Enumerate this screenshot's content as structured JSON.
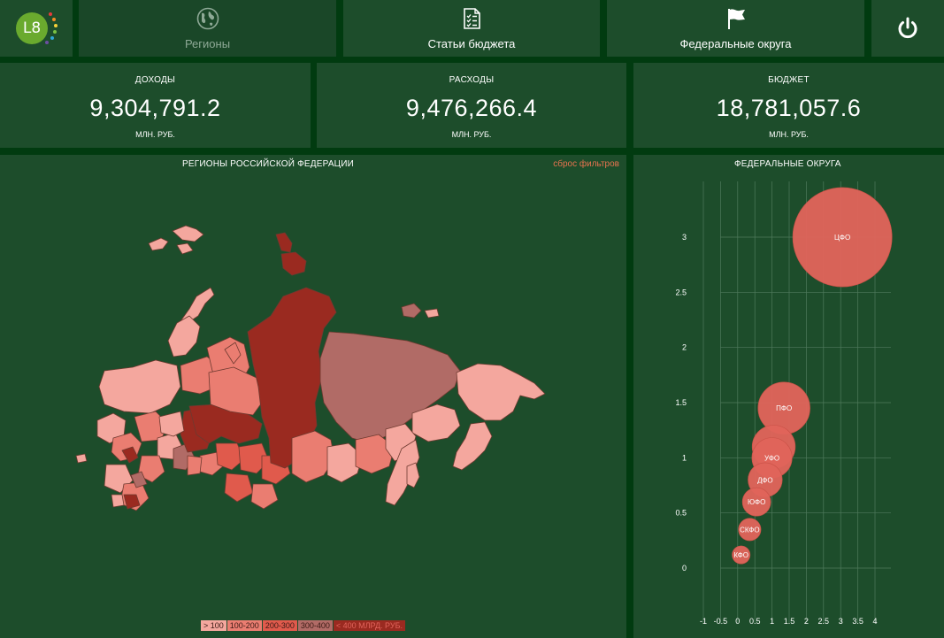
{
  "nav": {
    "logo_text": "L8",
    "tabs": [
      {
        "label": "Регионы",
        "icon": "globe-icon",
        "active": true
      },
      {
        "label": "Статьи бюджета",
        "icon": "checklist-icon",
        "active": false
      },
      {
        "label": "Федеральные округа",
        "icon": "flag-icon",
        "active": false
      }
    ],
    "power_icon": "power-icon"
  },
  "kpis": [
    {
      "title": "ДОХОДЫ",
      "value": "9,304,791.2",
      "unit": "МЛН. РУБ."
    },
    {
      "title": "РАСХОДЫ",
      "value": "9,476,266.4",
      "unit": "МЛН. РУБ."
    },
    {
      "title": "БЮДЖЕТ",
      "value": "18,781,057.6",
      "unit": "МЛН. РУБ."
    }
  ],
  "map": {
    "title": "РЕГИОНЫ РОССИЙСКОЙ ФЕДЕРАЦИИ",
    "reset_label": "сброс фильтров",
    "legend": [
      {
        "label": "> 100",
        "color": "#f4a79e"
      },
      {
        "label": "100-200",
        "color": "#ea7d71"
      },
      {
        "label": "200-300",
        "color": "#e05a4c"
      },
      {
        "label": "300-400",
        "color": "#b16b66"
      },
      {
        "label": "< 400 МЛРД. РУБ.",
        "color": "#9a2a20"
      }
    ]
  },
  "chart_data": {
    "type": "scatter",
    "title": "ФЕДЕРАЛЬНЫЕ ОКРУГА",
    "xlim": [
      -1,
      4
    ],
    "ylim": [
      -0.3,
      3.5
    ],
    "x_ticks": [
      "-1",
      "-0.5",
      "0",
      "0.5",
      "1",
      "1.5",
      "2",
      "2.5",
      "3",
      "3.5",
      "4"
    ],
    "y_ticks": [
      "0",
      "0.5",
      "1",
      "1.5",
      "2",
      "2.5",
      "3"
    ],
    "grid": true,
    "bubble_color": "#e0645b",
    "points": [
      {
        "label": "ЦФО",
        "x": 3.05,
        "y": 3.0,
        "size": 3.0
      },
      {
        "label": "ПФО",
        "x": 1.35,
        "y": 1.45,
        "size": 1.4
      },
      {
        "label": "",
        "x": 1.05,
        "y": 1.1,
        "size": 1.1
      },
      {
        "label": "УФО",
        "x": 1.0,
        "y": 1.0,
        "size": 1.0
      },
      {
        "label": "ДФО",
        "x": 0.8,
        "y": 0.8,
        "size": 0.8
      },
      {
        "label": "ЮФО",
        "x": 0.55,
        "y": 0.6,
        "size": 0.6
      },
      {
        "label": "СКФО",
        "x": 0.35,
        "y": 0.35,
        "size": 0.4
      },
      {
        "label": "КФО",
        "x": 0.1,
        "y": 0.12,
        "size": 0.25
      }
    ]
  }
}
